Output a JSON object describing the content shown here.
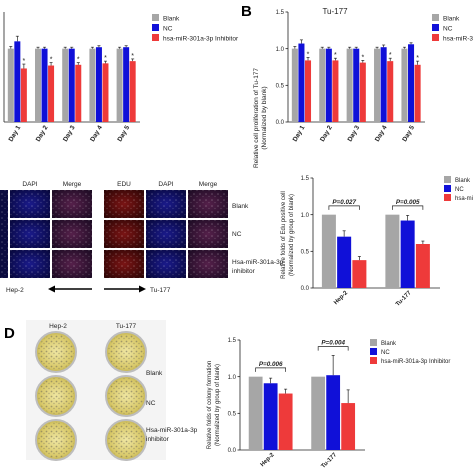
{
  "panels": {
    "a": {
      "legend": [
        "Blank",
        "NC",
        "hsa-miR-301a-3p Inhibitor"
      ],
      "star": "*"
    },
    "b": {
      "letter": "B",
      "title": "Tu-177",
      "legend": [
        "Blank",
        "NC",
        "hsa-miR-3"
      ],
      "star": "*"
    },
    "c": {
      "labels": {
        "dapi": "DAPI",
        "merge": "Merge",
        "edu": "EDU",
        "blank": "Blank",
        "nc": "NC",
        "inhibitor_line1": "Hsa-miR-301a-3p",
        "inhibitor_line2": "inhibitor",
        "hep2": "Hep-2",
        "tu177": "Tu-177"
      }
    },
    "c_chart": {
      "legend": [
        "Blank",
        "NC",
        "hsa-mi"
      ],
      "p_values": [
        "P=0.027",
        "P=0.005"
      ]
    },
    "d": {
      "letter": "D",
      "labels": {
        "hep2": "Hep-2",
        "tu177": "Tu-177",
        "blank": "Blank",
        "nc": "NC",
        "inhibitor_line1": "Hsa-miR-301a-3p",
        "inhibitor_line2": "inhibitor"
      },
      "legend": [
        "Blank",
        "NC",
        "hsa-miR-301a-3p Inhibitor"
      ],
      "p_values": [
        "P=0.006",
        "P=0.004"
      ]
    }
  },
  "colors": {
    "blank": "#a6a6a6",
    "nc": "#1010d8",
    "inhibitor": "#ee3a3a"
  },
  "chart_data": [
    {
      "type": "bar",
      "categories": [
        "Day 1",
        "Day 2",
        "Day 3",
        "Day 4",
        "Day 5"
      ],
      "ylim": [
        0,
        1.5
      ],
      "series": [
        {
          "name": "Blank",
          "values": [
            1.0,
            1.0,
            1.0,
            1.0,
            1.0
          ],
          "errors": [
            0.03,
            0.02,
            0.02,
            0.02,
            0.02
          ]
        },
        {
          "name": "NC",
          "values": [
            1.1,
            1.0,
            1.0,
            1.02,
            1.02
          ],
          "errors": [
            0.07,
            0.02,
            0.02,
            0.02,
            0.02
          ]
        },
        {
          "name": "hsa-miR-301a-3p Inhibitor",
          "values": [
            0.73,
            0.77,
            0.78,
            0.8,
            0.83
          ],
          "errors": [
            0.06,
            0.04,
            0.03,
            0.03,
            0.03
          ]
        }
      ]
    },
    {
      "type": "bar",
      "title": "Tu-177",
      "ylabel": "Relative cell proliferation of Tu-177 (Normalized by blank)",
      "categories": [
        "Day 1",
        "Day 2",
        "Day 3",
        "Day 4",
        "Day 5"
      ],
      "ylim": [
        0,
        1.5
      ],
      "yticks": [
        0.0,
        0.5,
        1.0,
        1.5
      ],
      "series": [
        {
          "name": "Blank",
          "values": [
            1.0,
            1.0,
            1.0,
            1.0,
            1.0
          ],
          "errors": [
            0.03,
            0.02,
            0.02,
            0.02,
            0.02
          ]
        },
        {
          "name": "NC",
          "values": [
            1.07,
            1.0,
            1.0,
            1.02,
            1.06
          ],
          "errors": [
            0.05,
            0.02,
            0.02,
            0.03,
            0.02
          ]
        },
        {
          "name": "hsa-miR-301a-3p Inhibitor",
          "values": [
            0.84,
            0.84,
            0.81,
            0.83,
            0.78
          ],
          "errors": [
            0.04,
            0.03,
            0.03,
            0.04,
            0.05
          ]
        }
      ]
    },
    {
      "type": "bar",
      "ylabel": "Relative folds of Edu positive cell (Normalized by group of blank)",
      "categories": [
        "Hep-2",
        "Tu-177"
      ],
      "ylim": [
        0,
        1.5
      ],
      "yticks": [
        0.0,
        0.5,
        1.0,
        1.5
      ],
      "series": [
        {
          "name": "Blank",
          "values": [
            1.0,
            1.0
          ],
          "errors": [
            0.0,
            0.0
          ]
        },
        {
          "name": "NC",
          "values": [
            0.7,
            0.92
          ],
          "errors": [
            0.08,
            0.07
          ]
        },
        {
          "name": "hsa-miR-301a-3p Inhibitor",
          "values": [
            0.38,
            0.6
          ],
          "errors": [
            0.05,
            0.04
          ]
        }
      ],
      "annotations": [
        "P=0.027",
        "P=0.005"
      ]
    },
    {
      "type": "bar",
      "ylabel": "Relative folds of colony formation (Normalized by group of blank)",
      "categories": [
        "Hep-2",
        "Tu-177"
      ],
      "ylim": [
        0,
        1.5
      ],
      "yticks": [
        0.0,
        0.5,
        1.0,
        1.5
      ],
      "series": [
        {
          "name": "Blank",
          "values": [
            1.0,
            1.0
          ],
          "errors": [
            0.0,
            0.0
          ]
        },
        {
          "name": "NC",
          "values": [
            0.91,
            1.02
          ],
          "errors": [
            0.07,
            0.27
          ]
        },
        {
          "name": "hsa-miR-301a-3p Inhibitor",
          "values": [
            0.77,
            0.64
          ],
          "errors": [
            0.06,
            0.18
          ]
        }
      ],
      "annotations": [
        "P=0.006",
        "P=0.004"
      ]
    }
  ]
}
